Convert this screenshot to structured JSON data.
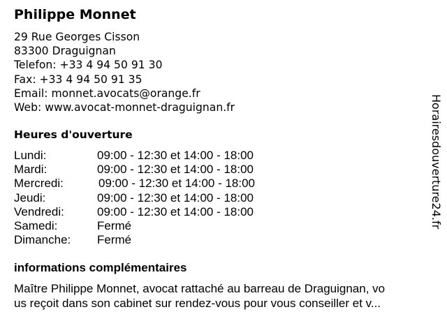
{
  "title": "Philippe Monnet",
  "contact": {
    "street": "29 Rue Georges Cisson",
    "city": "83300 Draguignan",
    "phone": "Telefon: +33 4 94 50 91 30",
    "fax": "Fax: +33 4 94 50 91 35",
    "email": "Email: monnet.avocats@orange.fr",
    "web": "Web: www.avocat-monnet-draguignan.fr"
  },
  "hours_heading": "Heures d'ouverture",
  "hours": [
    {
      "day": "Lundi:",
      "time": "09:00 - 12:30 et 14:00 - 18:00"
    },
    {
      "day": "Mardi:",
      "time": "09:00 - 12:30 et 14:00 - 18:00"
    },
    {
      "day": "Mercredi:",
      "time": "09:00 - 12:30 et 14:00 - 18:00"
    },
    {
      "day": "Jeudi:",
      "time": "09:00 - 12:30 et 14:00 - 18:00"
    },
    {
      "day": "Vendredi:",
      "time": "09:00 - 12:30 et 14:00 - 18:00"
    },
    {
      "day": "Samedi:",
      "time": "Fermé"
    },
    {
      "day": "Dimanche:",
      "time": "Fermé"
    }
  ],
  "info_heading": "informations complémentaires",
  "info_line1": "Maître Philippe Monnet, avocat rattaché au barreau de Draguignan, vo",
  "info_line2": "us reçoit dans son cabinet sur rendez-vous pour vous conseiller et v...",
  "watermark": "Horairesdouverture24.fr"
}
